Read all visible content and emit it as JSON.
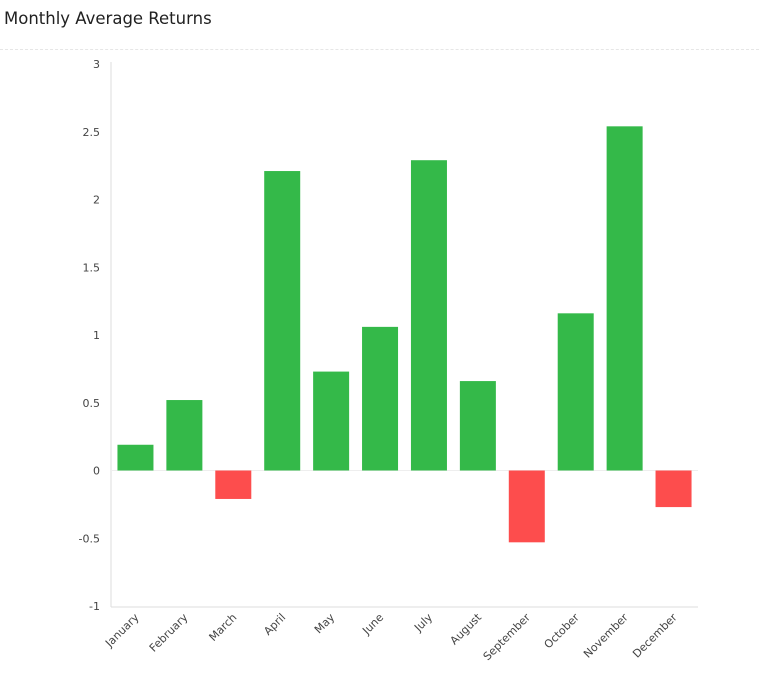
{
  "header": {
    "title": "Monthly Average Returns"
  },
  "colors": {
    "positive": "#34b949",
    "negative": "#fd4d4d",
    "axis": "#dddddd"
  },
  "chart_data": {
    "type": "bar",
    "title": "Monthly Average Returns",
    "xlabel": "",
    "ylabel": "",
    "ylim": [
      -1,
      3
    ],
    "yticks": [
      3,
      2.5,
      2,
      1.5,
      1,
      0.5,
      0,
      -0.5,
      -1
    ],
    "ytick_labels": [
      "3",
      "2.5",
      "2",
      "1.5",
      "1",
      "0.5",
      "0",
      "-0.5",
      "-1"
    ],
    "categories": [
      "January",
      "February",
      "March",
      "April",
      "May",
      "June",
      "July",
      "August",
      "September",
      "October",
      "November",
      "December"
    ],
    "values": [
      0.19,
      0.52,
      -0.21,
      2.21,
      0.73,
      1.06,
      2.29,
      0.66,
      -0.53,
      1.16,
      2.54,
      -0.27
    ]
  }
}
